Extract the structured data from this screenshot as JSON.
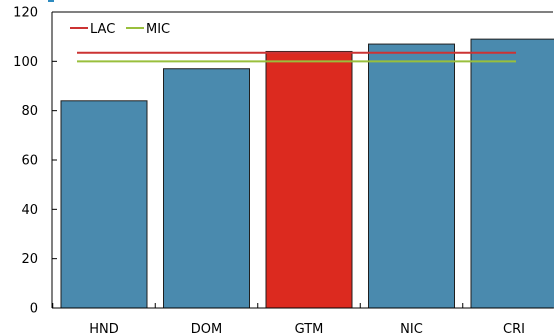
{
  "colors": {
    "bar": "#4A8AAE",
    "highlight": "#DC2A1F",
    "bar_edge": "#1f1f1f",
    "axis": "#000000",
    "accent_top": "#2E8BC0"
  },
  "chart_data": {
    "type": "bar",
    "title": "",
    "xlabel": "",
    "ylabel": "",
    "categories": [
      "HND",
      "DOM",
      "GTM",
      "NIC",
      "CRI"
    ],
    "values": [
      84,
      97,
      104,
      107,
      109
    ],
    "highlight_category": "GTM",
    "ylim": [
      0,
      120
    ],
    "yticks": [
      0,
      20,
      40,
      60,
      80,
      100,
      120
    ],
    "grid": false,
    "legend_position": "top-left",
    "reference_lines": [
      {
        "name": "LAC",
        "value": 103.5,
        "color": "#CC3333"
      },
      {
        "name": "MIC",
        "value": 100,
        "color": "#99BF3C"
      }
    ]
  }
}
